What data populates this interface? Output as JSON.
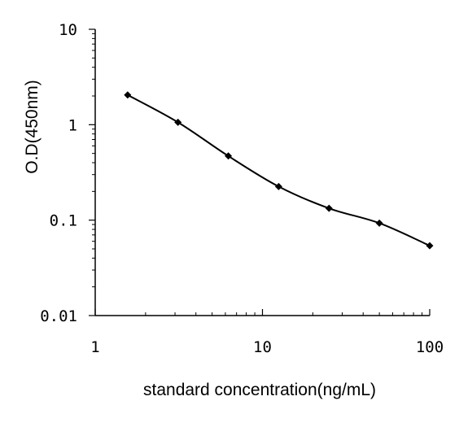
{
  "chart_data": {
    "type": "line",
    "title": "",
    "xlabel": "standard concentration(ng/mL)",
    "ylabel": "O.D(450nm)",
    "x_scale": "log",
    "y_scale": "log",
    "xlim": [
      1,
      100
    ],
    "ylim": [
      0.01,
      10
    ],
    "x_ticks": [
      {
        "value": 1,
        "label": "1"
      },
      {
        "value": 10,
        "label": "10"
      },
      {
        "value": 100,
        "label": "100"
      }
    ],
    "y_ticks": [
      {
        "value": 10,
        "label": "10"
      },
      {
        "value": 1,
        "label": "1"
      },
      {
        "value": 0.1,
        "label": "0.1"
      },
      {
        "value": 0.01,
        "label": "0.01"
      }
    ],
    "grid": false,
    "legend": "none",
    "line_color": "#000000",
    "marker": "diamond",
    "series": [
      {
        "x": [
          1.5625,
          3.125,
          6.25,
          12.5,
          25,
          50,
          100
        ],
        "y": [
          2.05,
          1.06,
          0.47,
          0.225,
          0.133,
          0.093,
          0.054
        ]
      }
    ]
  }
}
